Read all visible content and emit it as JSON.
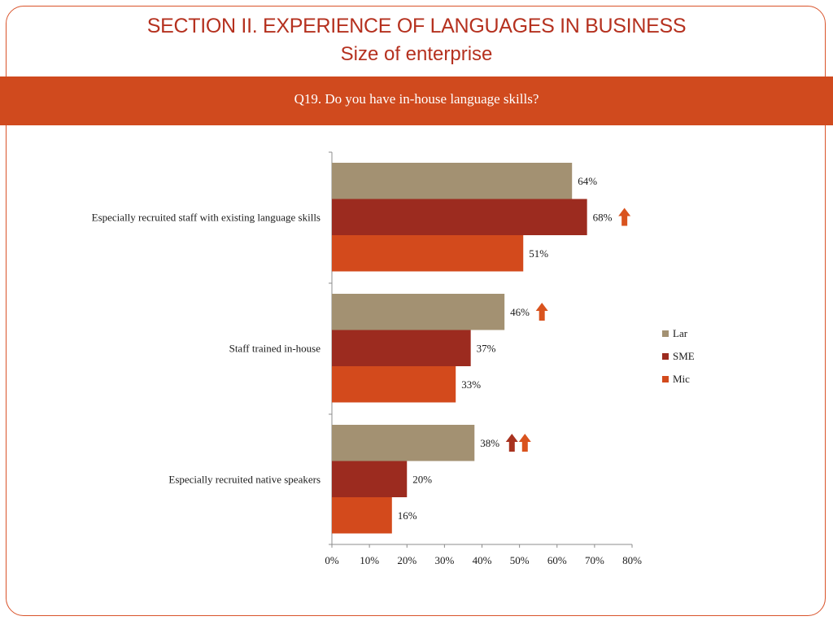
{
  "header": {
    "title": "SECTION II. EXPERIENCE OF LANGUAGES IN BUSINESS",
    "subtitle": "Size of enterprise"
  },
  "banner": {
    "question": "Q19. Do you have in-house language skills?"
  },
  "colors": {
    "frame": "#d9532a",
    "title": "#b5311f",
    "banner": "#d04a1e",
    "arrow_dark": "#a8321f",
    "arrow_orange": "#d9531e"
  },
  "chart_data": {
    "type": "bar",
    "orientation": "horizontal",
    "categories": [
      "Especially recruited staff with existing language skills",
      "Staff trained in-house",
      "Especially recruited native speakers"
    ],
    "series": [
      {
        "name": "Lar",
        "color": "#a39172",
        "values": [
          64,
          46,
          38
        ],
        "labels": [
          "64%",
          "46%",
          "38%"
        ]
      },
      {
        "name": "SME",
        "color": "#9c2b1f",
        "values": [
          68,
          37,
          20
        ],
        "labels": [
          "68%",
          "37%",
          "20%"
        ]
      },
      {
        "name": "Mic",
        "color": "#d34a1c",
        "values": [
          51,
          33,
          16
        ],
        "labels": [
          "51%",
          "33%",
          "16%"
        ]
      }
    ],
    "xlim": [
      0,
      80
    ],
    "xticks": [
      "0%",
      "10%",
      "20%",
      "30%",
      "40%",
      "50%",
      "60%",
      "70%",
      "80%"
    ],
    "grid": false,
    "legend_position": "right",
    "annotations": [
      {
        "type": "up-arrow",
        "category": 0,
        "series": 1,
        "color": "#d9531e"
      },
      {
        "type": "up-arrow",
        "category": 1,
        "series": 0,
        "color": "#d9531e"
      },
      {
        "type": "up-arrow",
        "category": 2,
        "series": 0,
        "color": "#a8321f"
      },
      {
        "type": "up-arrow",
        "category": 2,
        "series": 0,
        "color": "#d9531e"
      }
    ]
  }
}
